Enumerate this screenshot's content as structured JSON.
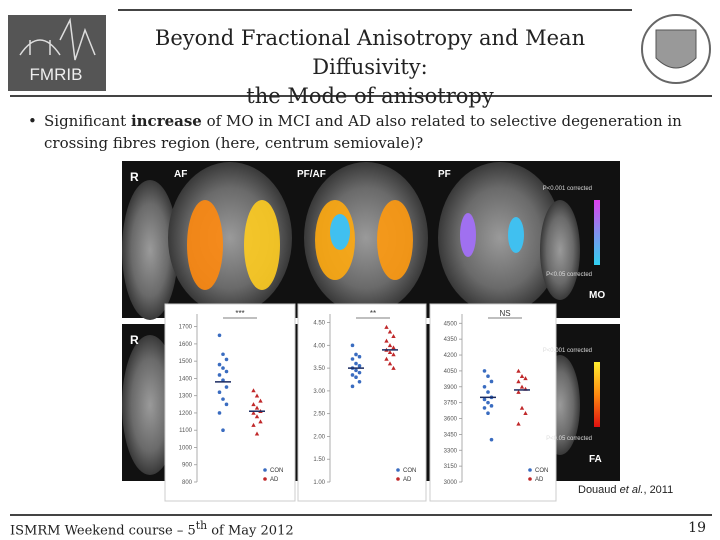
{
  "header": {
    "title_line1": "Beyond Fractional Anisotropy and Mean Diffusivity:",
    "title_line2": "the Mode of anisotropy",
    "left_logo": "FMRIB"
  },
  "bullet": {
    "parts": [
      "Significant ",
      "increase",
      " of MO in MCI and AD also related to selective degeneration in crossing fibres region (here, centrum semiovale)?"
    ]
  },
  "figure": {
    "top_row": {
      "side": "R",
      "panels": [
        "AF",
        "PF/AF",
        "PF"
      ],
      "colorbar_top": "P<0.001 corrected",
      "colorbar_bottom": "P<0.05 corrected",
      "measure": "MO"
    },
    "bottom_row": {
      "side": "R",
      "colorbar_top": "P<0.001 corrected",
      "colorbar_bottom": "P<0.05 corrected",
      "measure": "FA"
    },
    "plots": [
      {
        "significance": "***",
        "ylim": [
          800,
          1750
        ],
        "yticks": [
          800,
          900,
          1000,
          1100,
          1200,
          1300,
          1400,
          1500,
          1600,
          1700
        ],
        "series": [
          {
            "name": "CON",
            "color": "#3a6cc0",
            "mean": 1380,
            "values": [
              1650,
              1540,
              1510,
              1480,
              1460,
              1440,
              1420,
              1390,
              1350,
              1320,
              1280,
              1250,
              1200,
              1100
            ]
          },
          {
            "name": "AD",
            "color": "#c0282a",
            "mean": 1210,
            "values": [
              1330,
              1300,
              1270,
              1250,
              1230,
              1210,
              1200,
              1180,
              1150,
              1130,
              1080
            ]
          }
        ]
      },
      {
        "significance": "**",
        "ylim": [
          1,
          4.6
        ],
        "yticks": [
          {
            "value": 1,
            "label": "1.00"
          },
          {
            "value": 1.5,
            "label": "1.50"
          },
          {
            "value": 2,
            "label": "2.00"
          },
          {
            "value": 2.5,
            "label": "2.50"
          },
          {
            "value": 3,
            "label": "3.00"
          },
          {
            "value": 3.5,
            "label": "3.50"
          },
          {
            "value": 4,
            "label": "4.00"
          },
          {
            "value": 4.5,
            "label": "4.50"
          }
        ],
        "series": [
          {
            "name": "CON",
            "color": "#3a6cc0",
            "mean": 3.5,
            "values": [
              4.0,
              3.8,
              3.75,
              3.7,
              3.6,
              3.55,
              3.5,
              3.45,
              3.4,
              3.35,
              3.3,
              3.2,
              3.1
            ]
          },
          {
            "name": "AD",
            "color": "#c0282a",
            "mean": 3.9,
            "values": [
              4.4,
              4.3,
              4.2,
              4.1,
              4.0,
              3.95,
              3.9,
              3.85,
              3.8,
              3.7,
              3.6,
              3.5
            ]
          }
        ]
      },
      {
        "significance": "NS",
        "ylim": [
          3000,
          4550
        ],
        "yticks": [
          3000,
          3150,
          3300,
          3450,
          3600,
          3750,
          3900,
          4050,
          4200,
          4350,
          4500
        ],
        "series": [
          {
            "name": "CON",
            "color": "#3a6cc0",
            "mean": 3800,
            "values": [
              4050,
              4000,
              3950,
              3900,
              3850,
              3800,
              3780,
              3750,
              3720,
              3700,
              3650,
              3400
            ]
          },
          {
            "name": "AD",
            "color": "#c0282a",
            "mean": 3870,
            "values": [
              4050,
              4000,
              3980,
              3950,
              3900,
              3880,
              3850,
              3700,
              3650,
              3550
            ]
          }
        ]
      }
    ],
    "citation": {
      "parts": [
        "Douaud ",
        "et al.",
        ", 2011"
      ]
    }
  },
  "footer": {
    "parts": [
      "ISMRM Weekend course – 5",
      "th",
      " of May 2012"
    ],
    "page": "19"
  }
}
